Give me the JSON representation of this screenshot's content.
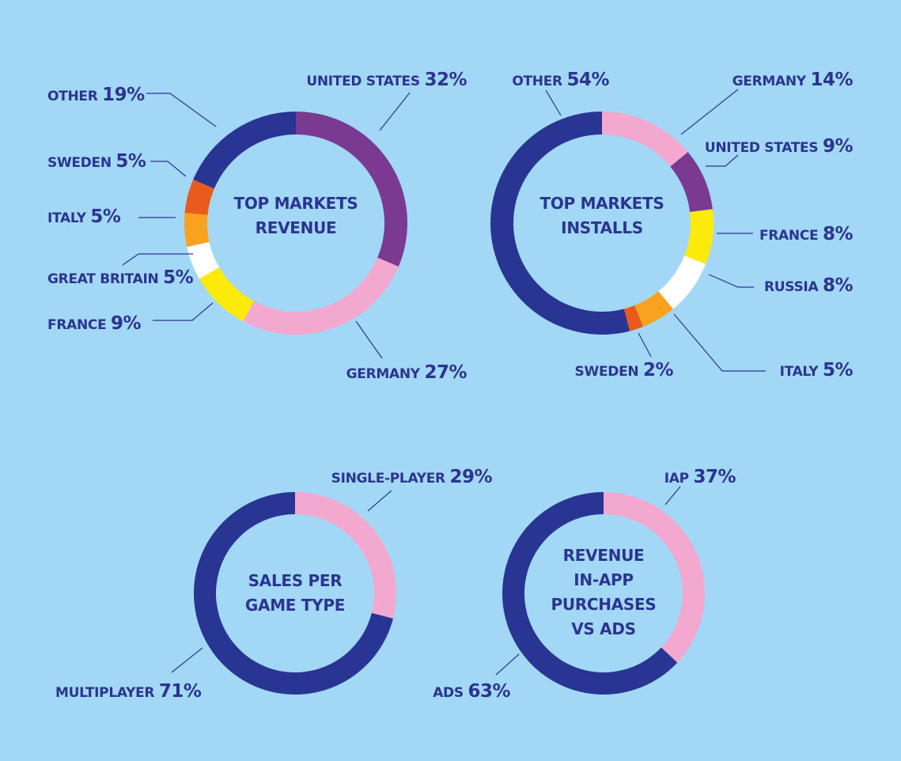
{
  "colors": {
    "background": "#a2d8f5",
    "text": "#2b3590",
    "navy": "#283593",
    "purple": "#7b3a92",
    "pink": "#f3a9cf",
    "yellow": "#fcea0a",
    "white": "#ffffff",
    "orange": "#f8a21f",
    "red_orange": "#ea5a1c"
  },
  "chart_data": [
    {
      "type": "pie",
      "donut": true,
      "title_lines": [
        "TOP MARKETS",
        "REVENUE"
      ],
      "slices": [
        {
          "label": "UNITED STATES",
          "value": 32,
          "display": "32%",
          "color": "#7b3a92"
        },
        {
          "label": "GERMANY",
          "value": 27,
          "display": "27%",
          "color": "#f3a9cf"
        },
        {
          "label": "FRANCE",
          "value": 9,
          "display": "9%",
          "color": "#fcea0a"
        },
        {
          "label": "GREAT BRITAIN",
          "value": 5,
          "display": "5%",
          "color": "#ffffff"
        },
        {
          "label": "ITALY",
          "value": 5,
          "display": "5%",
          "color": "#f8a21f"
        },
        {
          "label": "SWEDEN",
          "value": 5,
          "display": "5%",
          "color": "#ea5a1c"
        },
        {
          "label": "OTHER",
          "value": 19,
          "display": "19%",
          "color": "#283593"
        }
      ]
    },
    {
      "type": "pie",
      "donut": true,
      "title_lines": [
        "TOP MARKETS",
        "INSTALLS"
      ],
      "slices": [
        {
          "label": "GERMANY",
          "value": 14,
          "display": "14%",
          "color": "#f3a9cf"
        },
        {
          "label": "UNITED STATES",
          "value": 9,
          "display": "9%",
          "color": "#7b3a92"
        },
        {
          "label": "FRANCE",
          "value": 8,
          "display": "8%",
          "color": "#fcea0a"
        },
        {
          "label": "RUSSIA",
          "value": 8,
          "display": "8%",
          "color": "#ffffff"
        },
        {
          "label": "ITALY",
          "value": 5,
          "display": "5%",
          "color": "#f8a21f"
        },
        {
          "label": "SWEDEN",
          "value": 2,
          "display": "2%",
          "color": "#ea5a1c"
        },
        {
          "label": "OTHER",
          "value": 54,
          "display": "54%",
          "color": "#283593"
        }
      ]
    },
    {
      "type": "pie",
      "donut": true,
      "title_lines": [
        "SALES PER",
        "GAME TYPE"
      ],
      "slices": [
        {
          "label": "SINGLE-PLAYER",
          "value": 29,
          "display": "29%",
          "color": "#f3a9cf"
        },
        {
          "label": "MULTIPLAYER",
          "value": 71,
          "display": "71%",
          "color": "#283593"
        }
      ]
    },
    {
      "type": "pie",
      "donut": true,
      "title_lines": [
        "REVENUE",
        "IN-APP",
        "PURCHASES",
        "VS ADS"
      ],
      "slices": [
        {
          "label": "IAP",
          "value": 37,
          "display": "37%",
          "color": "#f3a9cf"
        },
        {
          "label": "ADS",
          "value": 63,
          "display": "63%",
          "color": "#283593"
        }
      ]
    }
  ]
}
